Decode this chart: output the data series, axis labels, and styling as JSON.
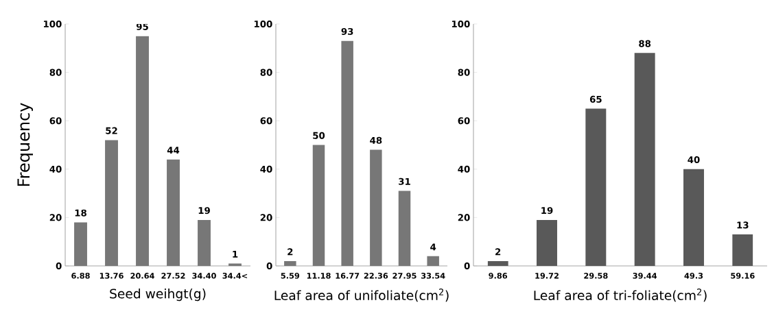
{
  "chart_data": [
    {
      "type": "bar",
      "xlabel": "Seed weihgt(g)",
      "ylabel": "Frequency",
      "categories": [
        "6.88",
        "13.76",
        "20.64",
        "27.52",
        "34.40",
        "34.4<"
      ],
      "values": [
        18,
        52,
        95,
        44,
        19,
        1
      ],
      "color": "#777777",
      "ylim": [
        0,
        100
      ],
      "yticks": [
        0,
        20,
        40,
        60,
        80,
        100
      ],
      "data_labels": true
    },
    {
      "type": "bar",
      "xlabel": "Leaf area of unifoliate(cm$^{2}$)",
      "categories": [
        "5.59",
        "11.18",
        "16.77",
        "22.36",
        "27.95",
        "33.54"
      ],
      "values": [
        2,
        50,
        93,
        48,
        31,
        4
      ],
      "color": "#777777",
      "ylim": [
        0,
        100
      ],
      "yticks": [
        0,
        20,
        40,
        60,
        80,
        100
      ],
      "data_labels": true
    },
    {
      "type": "bar",
      "xlabel": "Leaf area of tri-foliate(cm$^{2}$)",
      "categories": [
        "9.86",
        "19.72",
        "29.58",
        "39.44",
        "49.3",
        "59.16"
      ],
      "values": [
        2,
        19,
        65,
        88,
        40,
        13
      ],
      "color": "#595959",
      "ylim": [
        0,
        100
      ],
      "yticks": [
        0,
        20,
        40,
        60,
        80,
        100
      ],
      "data_labels": true
    }
  ]
}
